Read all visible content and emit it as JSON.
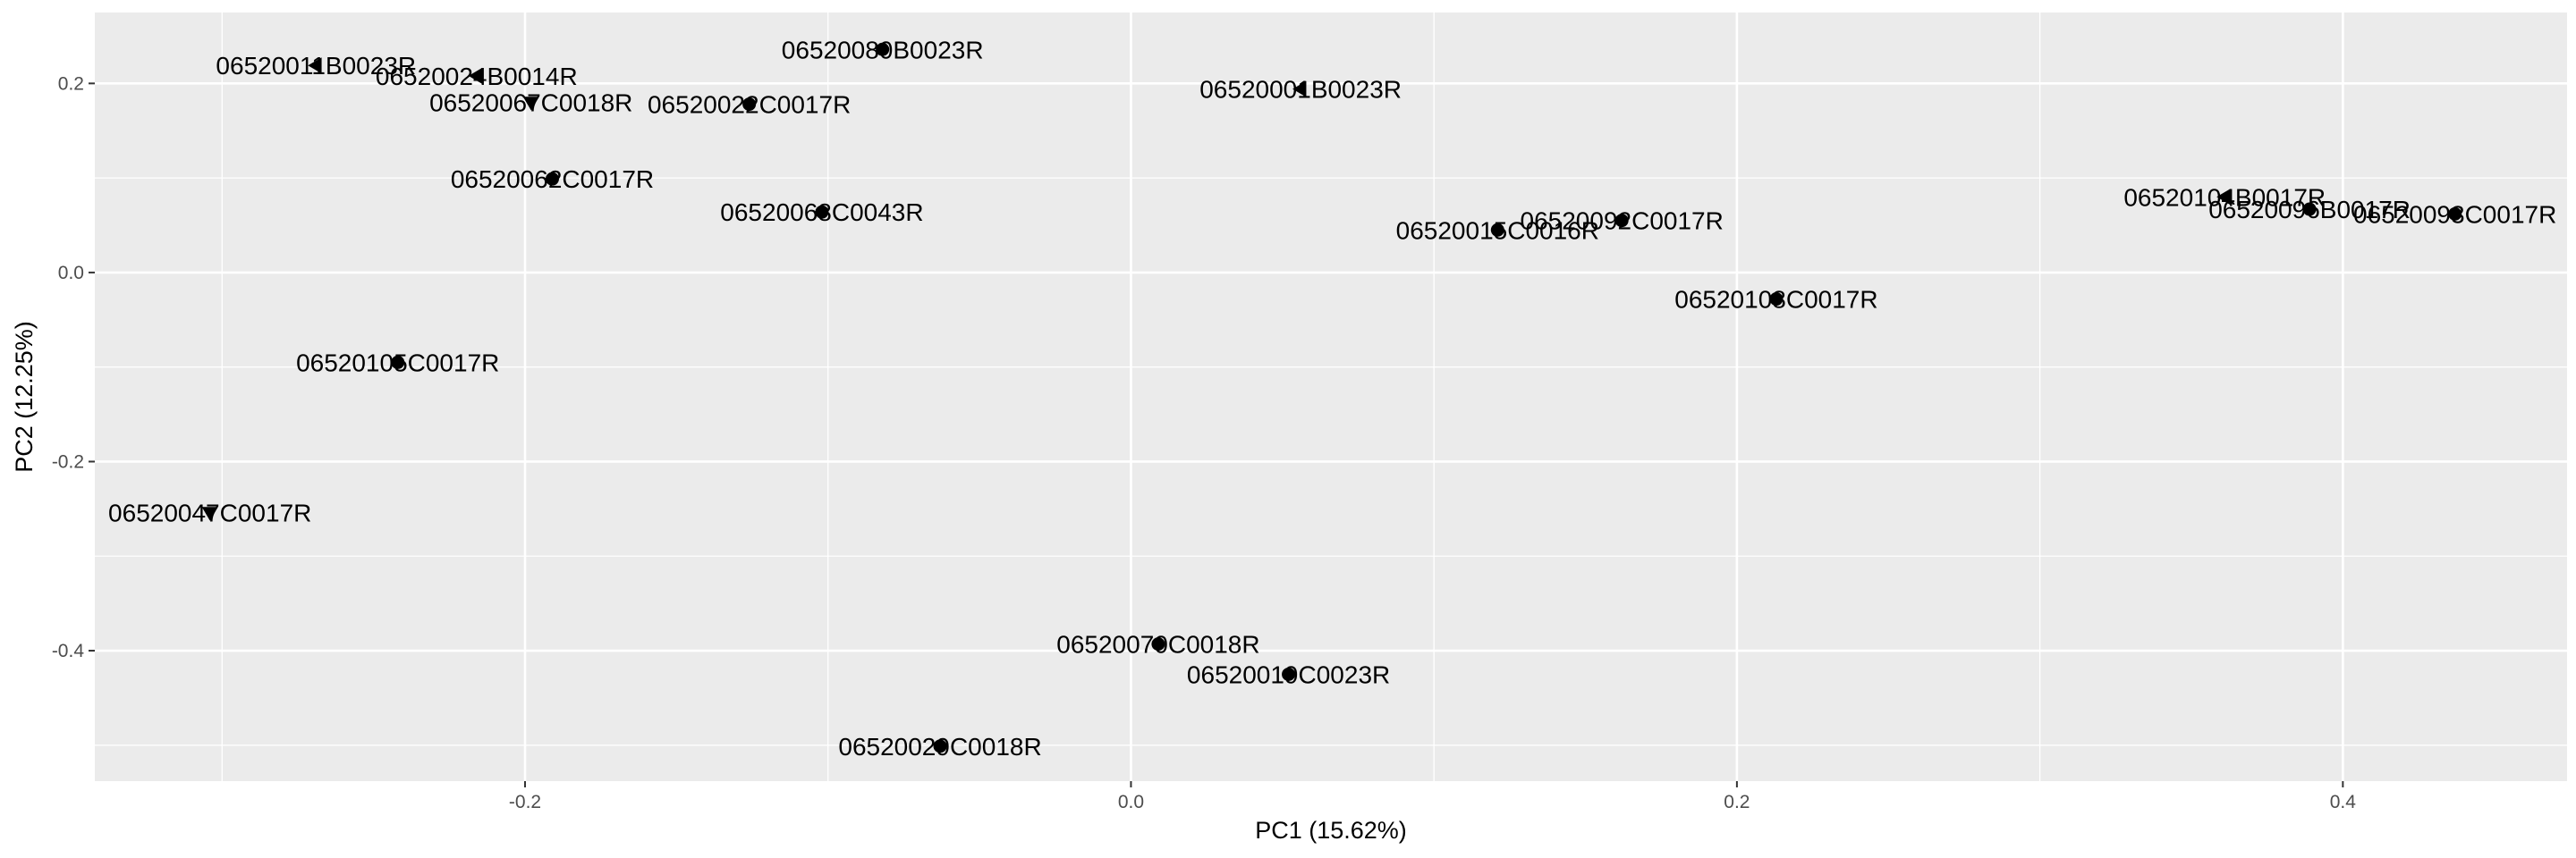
{
  "chart_data": {
    "type": "scatter",
    "title": "",
    "xlabel": "PC1 (15.62%)",
    "ylabel": "PC2 (12.25%)",
    "xlim": [
      -0.342,
      0.474
    ],
    "ylim": [
      -0.538,
      0.275
    ],
    "x_ticks": [
      -0.2,
      0.0,
      0.2,
      0.4
    ],
    "x_tick_labels": [
      "-0.2",
      "0.0",
      "0.2",
      "0.4"
    ],
    "y_ticks": [
      -0.4,
      -0.2,
      0.0,
      0.2
    ],
    "y_tick_labels": [
      "-0.4",
      "-0.2",
      "0.0",
      "0.2"
    ],
    "grid": true,
    "panel_background": "#ebebeb",
    "grid_color": "#ffffff",
    "point_color": "#000000",
    "points": [
      {
        "label": "06520011B0023R",
        "x": -0.269,
        "y": 0.219,
        "shape": "triangle-left"
      },
      {
        "label": "06520024B0014R",
        "x": -0.216,
        "y": 0.208,
        "shape": "triangle-left"
      },
      {
        "label": "06520067C0018R",
        "x": -0.198,
        "y": 0.18,
        "shape": "triangle-down"
      },
      {
        "label": "06520022C0017R",
        "x": -0.126,
        "y": 0.178,
        "shape": "circle"
      },
      {
        "label": "06520080B0023R",
        "x": -0.082,
        "y": 0.236,
        "shape": "circle"
      },
      {
        "label": "06520001B0023R",
        "x": 0.056,
        "y": 0.194,
        "shape": "triangle-left"
      },
      {
        "label": "06520062C0017R",
        "x": -0.191,
        "y": 0.099,
        "shape": "circle"
      },
      {
        "label": "06520068C0043R",
        "x": -0.102,
        "y": 0.064,
        "shape": "circle"
      },
      {
        "label": "06520015C0016R",
        "x": 0.121,
        "y": 0.045,
        "shape": "circle"
      },
      {
        "label": "06520092C0017R",
        "x": 0.162,
        "y": 0.055,
        "shape": "circle"
      },
      {
        "label": "06520108C0017R",
        "x": 0.213,
        "y": -0.028,
        "shape": "circle"
      },
      {
        "label": "06520104B0017R",
        "x": 0.361,
        "y": 0.08,
        "shape": "triangle-left"
      },
      {
        "label": "06520096B0017R",
        "x": 0.389,
        "y": 0.067,
        "shape": "circle"
      },
      {
        "label": "06520093C0017R",
        "x": 0.437,
        "y": 0.062,
        "shape": "circle"
      },
      {
        "label": "06520105C0017R",
        "x": -0.242,
        "y": -0.095,
        "shape": "circle"
      },
      {
        "label": "06520047C0017R",
        "x": -0.304,
        "y": -0.254,
        "shape": "triangle-down"
      },
      {
        "label": "06520070C0018R",
        "x": 0.009,
        "y": -0.393,
        "shape": "circle"
      },
      {
        "label": "06520019C0023R",
        "x": 0.052,
        "y": -0.425,
        "shape": "circle"
      },
      {
        "label": "06520029C0018R",
        "x": -0.063,
        "y": -0.501,
        "shape": "circle"
      }
    ]
  }
}
